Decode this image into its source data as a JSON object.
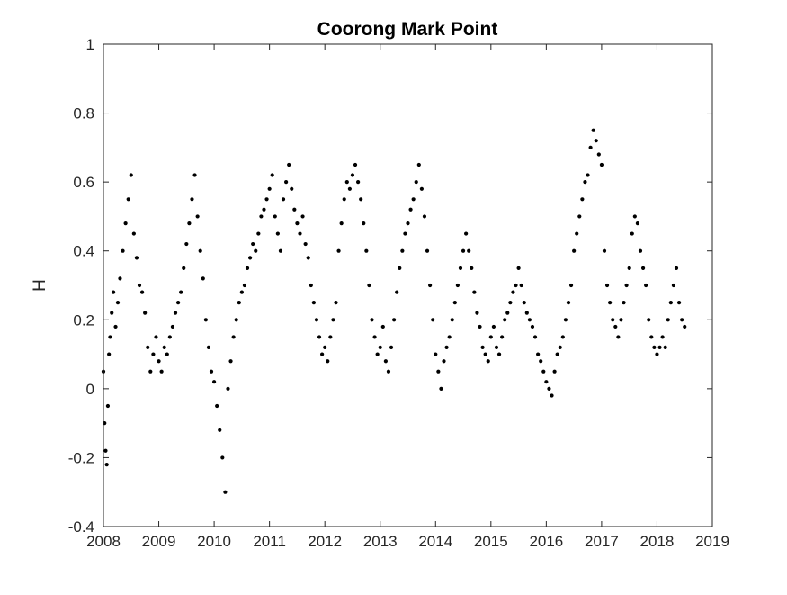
{
  "chart_data": {
    "type": "scatter",
    "title": "Coorong Mark Point",
    "xlabel": "",
    "ylabel": "H",
    "xlim": [
      2008,
      2019
    ],
    "ylim": [
      -0.4,
      1
    ],
    "xticks": [
      "2008",
      "2009",
      "2010",
      "2011",
      "2012",
      "2013",
      "2014",
      "2015",
      "2016",
      "2017",
      "2018",
      "2019"
    ],
    "yticks": [
      "-0.4",
      "-0.2",
      "0",
      "0.2",
      "0.4",
      "0.6",
      "0.8",
      "1"
    ],
    "grid": false,
    "marker_color": "#000000",
    "series": [
      {
        "x": [
          2008.0,
          2008.02,
          2008.04,
          2008.06,
          2008.08,
          2008.1,
          2008.12,
          2008.15,
          2008.18,
          2008.22,
          2008.26,
          2008.3,
          2008.35,
          2008.4,
          2008.45,
          2008.5,
          2008.55,
          2008.6,
          2008.65,
          2008.7,
          2008.75,
          2008.8,
          2008.85,
          2008.9,
          2008.95,
          2009.0,
          2009.05,
          2009.1,
          2009.15,
          2009.2,
          2009.25,
          2009.3,
          2009.35,
          2009.4,
          2009.45,
          2009.5,
          2009.55,
          2009.6,
          2009.65,
          2009.7,
          2009.75,
          2009.8,
          2009.85,
          2009.9,
          2009.95,
          2010.0,
          2010.05,
          2010.1,
          2010.15,
          2010.2,
          2010.25,
          2010.3,
          2010.35,
          2010.4,
          2010.45,
          2010.5,
          2010.55,
          2010.6,
          2010.65,
          2010.7,
          2010.75,
          2010.8,
          2010.85,
          2010.9,
          2010.95,
          2011.0,
          2011.05,
          2011.1,
          2011.15,
          2011.2,
          2011.25,
          2011.3,
          2011.35,
          2011.4,
          2011.45,
          2011.5,
          2011.55,
          2011.6,
          2011.65,
          2011.7,
          2011.75,
          2011.8,
          2011.85,
          2011.9,
          2011.95,
          2012.0,
          2012.05,
          2012.1,
          2012.15,
          2012.2,
          2012.25,
          2012.3,
          2012.35,
          2012.4,
          2012.45,
          2012.5,
          2012.55,
          2012.6,
          2012.65,
          2012.7,
          2012.75,
          2012.8,
          2012.85,
          2012.9,
          2012.95,
          2013.0,
          2013.05,
          2013.1,
          2013.15,
          2013.2,
          2013.25,
          2013.3,
          2013.35,
          2013.4,
          2013.45,
          2013.5,
          2013.55,
          2013.6,
          2013.65,
          2013.7,
          2013.75,
          2013.8,
          2013.85,
          2013.9,
          2013.95,
          2014.0,
          2014.05,
          2014.1,
          2014.15,
          2014.2,
          2014.25,
          2014.3,
          2014.35,
          2014.4,
          2014.45,
          2014.5,
          2014.55,
          2014.6,
          2014.65,
          2014.7,
          2014.75,
          2014.8,
          2014.85,
          2014.9,
          2014.95,
          2015.0,
          2015.05,
          2015.1,
          2015.15,
          2015.2,
          2015.25,
          2015.3,
          2015.35,
          2015.4,
          2015.45,
          2015.5,
          2015.55,
          2015.6,
          2015.65,
          2015.7,
          2015.75,
          2015.8,
          2015.85,
          2015.9,
          2015.95,
          2016.0,
          2016.05,
          2016.1,
          2016.15,
          2016.2,
          2016.25,
          2016.3,
          2016.35,
          2016.4,
          2016.45,
          2016.5,
          2016.55,
          2016.6,
          2016.65,
          2016.7,
          2016.75,
          2016.8,
          2016.85,
          2016.9,
          2016.95,
          2017.0,
          2017.05,
          2017.1,
          2017.15,
          2017.2,
          2017.25,
          2017.3,
          2017.35,
          2017.4,
          2017.45,
          2017.5,
          2017.55,
          2017.6,
          2017.65,
          2017.7,
          2017.75,
          2017.8,
          2017.85,
          2017.9,
          2017.95,
          2018.0,
          2018.05,
          2018.1,
          2018.15,
          2018.2,
          2018.25,
          2018.3,
          2018.35,
          2018.4,
          2018.45,
          2018.5
        ],
        "y": [
          0.05,
          -0.1,
          -0.18,
          -0.22,
          -0.05,
          0.1,
          0.15,
          0.22,
          0.28,
          0.18,
          0.25,
          0.32,
          0.4,
          0.48,
          0.55,
          0.62,
          0.45,
          0.38,
          0.3,
          0.28,
          0.22,
          0.12,
          0.05,
          0.1,
          0.15,
          0.08,
          0.05,
          0.12,
          0.1,
          0.15,
          0.18,
          0.22,
          0.25,
          0.28,
          0.35,
          0.42,
          0.48,
          0.55,
          0.62,
          0.5,
          0.4,
          0.32,
          0.2,
          0.12,
          0.05,
          0.02,
          -0.05,
          -0.12,
          -0.2,
          -0.3,
          0.0,
          0.08,
          0.15,
          0.2,
          0.25,
          0.28,
          0.3,
          0.35,
          0.38,
          0.42,
          0.4,
          0.45,
          0.5,
          0.52,
          0.55,
          0.58,
          0.62,
          0.5,
          0.45,
          0.4,
          0.55,
          0.6,
          0.65,
          0.58,
          0.52,
          0.48,
          0.45,
          0.5,
          0.42,
          0.38,
          0.3,
          0.25,
          0.2,
          0.15,
          0.1,
          0.12,
          0.08,
          0.15,
          0.2,
          0.25,
          0.4,
          0.48,
          0.55,
          0.6,
          0.58,
          0.62,
          0.65,
          0.6,
          0.55,
          0.48,
          0.4,
          0.3,
          0.2,
          0.15,
          0.1,
          0.12,
          0.18,
          0.08,
          0.05,
          0.12,
          0.2,
          0.28,
          0.35,
          0.4,
          0.45,
          0.48,
          0.52,
          0.55,
          0.6,
          0.65,
          0.58,
          0.5,
          0.4,
          0.3,
          0.2,
          0.1,
          0.05,
          0.0,
          0.08,
          0.12,
          0.15,
          0.2,
          0.25,
          0.3,
          0.35,
          0.4,
          0.45,
          0.4,
          0.35,
          0.28,
          0.22,
          0.18,
          0.12,
          0.1,
          0.08,
          0.15,
          0.18,
          0.12,
          0.1,
          0.15,
          0.2,
          0.22,
          0.25,
          0.28,
          0.3,
          0.35,
          0.3,
          0.25,
          0.22,
          0.2,
          0.18,
          0.15,
          0.1,
          0.08,
          0.05,
          0.02,
          0.0,
          -0.02,
          0.05,
          0.1,
          0.12,
          0.15,
          0.2,
          0.25,
          0.3,
          0.4,
          0.45,
          0.5,
          0.55,
          0.6,
          0.62,
          0.7,
          0.75,
          0.72,
          0.68,
          0.65,
          0.4,
          0.3,
          0.25,
          0.2,
          0.18,
          0.15,
          0.2,
          0.25,
          0.3,
          0.35,
          0.45,
          0.5,
          0.48,
          0.4,
          0.35,
          0.3,
          0.2,
          0.15,
          0.12,
          0.1,
          0.12,
          0.15,
          0.12,
          0.2,
          0.25,
          0.3,
          0.35,
          0.25,
          0.2,
          0.18
        ]
      }
    ]
  }
}
